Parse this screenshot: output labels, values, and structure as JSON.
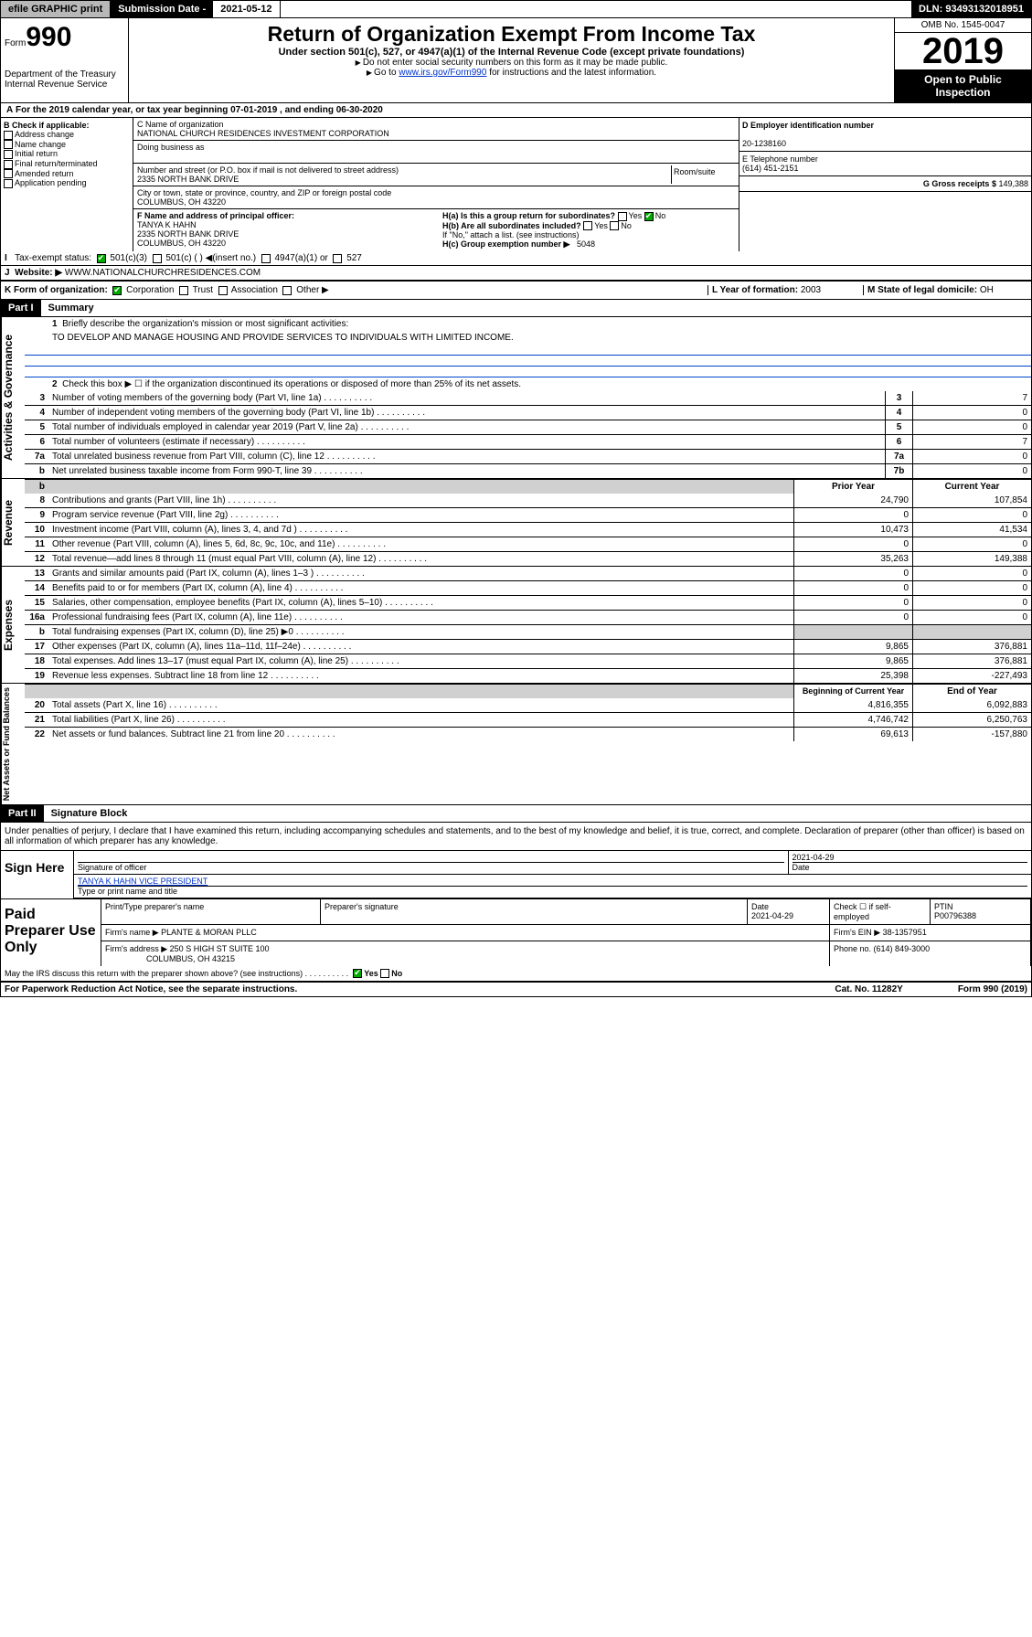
{
  "top": {
    "efile": "efile GRAPHIC print",
    "submission_label": "Submission Date - ",
    "submission_date": "2021-05-12",
    "dln_label": "DLN: ",
    "dln": "93493132018951"
  },
  "header": {
    "form_label": "Form",
    "form_no": "990",
    "dept": "Department of the Treasury\nInternal Revenue Service",
    "title": "Return of Organization Exempt From Income Tax",
    "subtitle": "Under section 501(c), 527, or 4947(a)(1) of the Internal Revenue Code (except private foundations)",
    "note1": "Do not enter social security numbers on this form as it may be made public.",
    "note2_pre": "Go to ",
    "note2_link": "www.irs.gov/Form990",
    "note2_post": " for instructions and the latest information.",
    "omb": "OMB No. 1545-0047",
    "year": "2019",
    "open": "Open to Public Inspection"
  },
  "rowA": "For the 2019 calendar year, or tax year beginning 07-01-2019   , and ending 06-30-2020",
  "B": {
    "label": "B Check if applicable:",
    "items": [
      "Address change",
      "Name change",
      "Initial return",
      "Final return/terminated",
      "Amended return",
      "Application pending"
    ]
  },
  "C": {
    "name_label": "C Name of organization",
    "name": "NATIONAL CHURCH RESIDENCES INVESTMENT CORPORATION",
    "dba_label": "Doing business as",
    "addr_label": "Number and street (or P.O. box if mail is not delivered to street address)",
    "room_label": "Room/suite",
    "addr": "2335 NORTH BANK DRIVE",
    "city_label": "City or town, state or province, country, and ZIP or foreign postal code",
    "city": "COLUMBUS, OH  43220"
  },
  "D": {
    "label": "D Employer identification number",
    "val": "20-1238160"
  },
  "E": {
    "label": "E Telephone number",
    "val": "(614) 451-2151"
  },
  "G": {
    "label": "G Gross receipts $ ",
    "val": "149,388"
  },
  "F": {
    "label": "F  Name and address of principal officer:",
    "name": "TANYA K HAHN",
    "addr1": "2335 NORTH BANK DRIVE",
    "addr2": "COLUMBUS, OH  43220"
  },
  "H": {
    "a": "H(a)  Is this a group return for subordinates?",
    "b": "H(b)  Are all subordinates included?",
    "b_note": "If \"No,\" attach a list. (see instructions)",
    "c": "H(c)  Group exemption number ▶",
    "c_val": "5048",
    "yes": "Yes",
    "no": "No"
  },
  "I": {
    "label": "Tax-exempt status:",
    "opts": [
      "501(c)(3)",
      "501(c) (  ) ◀(insert no.)",
      "4947(a)(1) or",
      "527"
    ]
  },
  "J": {
    "label": "Website: ▶",
    "val": "WWW.NATIONALCHURCHRESIDENCES.COM"
  },
  "K": {
    "label": "K Form of organization:",
    "opts": [
      "Corporation",
      "Trust",
      "Association",
      "Other ▶"
    ]
  },
  "L": {
    "label": "L Year of formation: ",
    "val": "2003"
  },
  "M": {
    "label": "M State of legal domicile: ",
    "val": "OH"
  },
  "part1": {
    "num": "Part I",
    "title": "Summary"
  },
  "governance": {
    "label": "Activities & Governance",
    "l1": "Briefly describe the organization's mission or most significant activities:",
    "mission": "TO DEVELOP AND MANAGE HOUSING AND PROVIDE SERVICES TO INDIVIDUALS WITH LIMITED INCOME.",
    "l2": "Check this box ▶ ☐  if the organization discontinued its operations or disposed of more than 25% of its net assets.",
    "lines": [
      {
        "n": "3",
        "d": "Number of voting members of the governing body (Part VI, line 1a)",
        "box": "3",
        "v": "7"
      },
      {
        "n": "4",
        "d": "Number of independent voting members of the governing body (Part VI, line 1b)",
        "box": "4",
        "v": "0"
      },
      {
        "n": "5",
        "d": "Total number of individuals employed in calendar year 2019 (Part V, line 2a)",
        "box": "5",
        "v": "0"
      },
      {
        "n": "6",
        "d": "Total number of volunteers (estimate if necessary)",
        "box": "6",
        "v": "7"
      },
      {
        "n": "7a",
        "d": "Total unrelated business revenue from Part VIII, column (C), line 12",
        "box": "7a",
        "v": "0"
      },
      {
        "n": "b",
        "d": "Net unrelated business taxable income from Form 990-T, line 39",
        "box": "7b",
        "v": "0"
      }
    ]
  },
  "revenue": {
    "label": "Revenue",
    "hdr1": "Prior Year",
    "hdr2": "Current Year",
    "lines": [
      {
        "n": "8",
        "d": "Contributions and grants (Part VIII, line 1h)",
        "py": "24,790",
        "cy": "107,854"
      },
      {
        "n": "9",
        "d": "Program service revenue (Part VIII, line 2g)",
        "py": "0",
        "cy": "0"
      },
      {
        "n": "10",
        "d": "Investment income (Part VIII, column (A), lines 3, 4, and 7d )",
        "py": "10,473",
        "cy": "41,534"
      },
      {
        "n": "11",
        "d": "Other revenue (Part VIII, column (A), lines 5, 6d, 8c, 9c, 10c, and 11e)",
        "py": "0",
        "cy": "0"
      },
      {
        "n": "12",
        "d": "Total revenue—add lines 8 through 11 (must equal Part VIII, column (A), line 12)",
        "py": "35,263",
        "cy": "149,388"
      }
    ]
  },
  "expenses": {
    "label": "Expenses",
    "lines": [
      {
        "n": "13",
        "d": "Grants and similar amounts paid (Part IX, column (A), lines 1–3 )",
        "py": "0",
        "cy": "0"
      },
      {
        "n": "14",
        "d": "Benefits paid to or for members (Part IX, column (A), line 4)",
        "py": "0",
        "cy": "0"
      },
      {
        "n": "15",
        "d": "Salaries, other compensation, employee benefits (Part IX, column (A), lines 5–10)",
        "py": "0",
        "cy": "0"
      },
      {
        "n": "16a",
        "d": "Professional fundraising fees (Part IX, column (A), line 11e)",
        "py": "0",
        "cy": "0"
      },
      {
        "n": "b",
        "d": "Total fundraising expenses (Part IX, column (D), line 25) ▶0",
        "py": "",
        "cy": "",
        "shaded": true
      },
      {
        "n": "17",
        "d": "Other expenses (Part IX, column (A), lines 11a–11d, 11f–24e)",
        "py": "9,865",
        "cy": "376,881"
      },
      {
        "n": "18",
        "d": "Total expenses. Add lines 13–17 (must equal Part IX, column (A), line 25)",
        "py": "9,865",
        "cy": "376,881"
      },
      {
        "n": "19",
        "d": "Revenue less expenses. Subtract line 18 from line 12",
        "py": "25,398",
        "cy": "-227,493"
      }
    ]
  },
  "netassets": {
    "label": "Net Assets or Fund Balances",
    "hdr1": "Beginning of Current Year",
    "hdr2": "End of Year",
    "lines": [
      {
        "n": "20",
        "d": "Total assets (Part X, line 16)",
        "py": "4,816,355",
        "cy": "6,092,883"
      },
      {
        "n": "21",
        "d": "Total liabilities (Part X, line 26)",
        "py": "4,746,742",
        "cy": "6,250,763"
      },
      {
        "n": "22",
        "d": "Net assets or fund balances. Subtract line 21 from line 20",
        "py": "69,613",
        "cy": "-157,880"
      }
    ]
  },
  "part2": {
    "num": "Part II",
    "title": "Signature Block"
  },
  "perjury": "Under penalties of perjury, I declare that I have examined this return, including accompanying schedules and statements, and to the best of my knowledge and belief, it is true, correct, and complete. Declaration of preparer (other than officer) is based on all information of which preparer has any knowledge.",
  "sign": {
    "label": "Sign Here",
    "sig_of": "Signature of officer",
    "date": "2021-04-29",
    "date_lbl": "Date",
    "name": "TANYA K HAHN  VICE PRESIDENT",
    "name_lbl": "Type or print name and title"
  },
  "paid": {
    "label": "Paid Preparer Use Only",
    "h1": "Print/Type preparer's name",
    "h2": "Preparer's signature",
    "h3": "Date",
    "date": "2021-04-29",
    "h4": "Check ☐ if self-employed",
    "h5": "PTIN",
    "ptin": "P00796388",
    "firm_lbl": "Firm's name    ▶",
    "firm": "PLANTE & MORAN PLLC",
    "ein_lbl": "Firm's EIN ▶",
    "ein": "38-1357951",
    "addr_lbl": "Firm's address ▶",
    "addr": "250 S HIGH ST SUITE 100",
    "addr2": "COLUMBUS, OH  43215",
    "phone_lbl": "Phone no. ",
    "phone": "(614) 849-3000"
  },
  "discuss": "May the IRS discuss this return with the preparer shown above? (see instructions)",
  "footer": {
    "pra": "For Paperwork Reduction Act Notice, see the separate instructions.",
    "cat": "Cat. No. 11282Y",
    "form": "Form 990 (2019)"
  }
}
